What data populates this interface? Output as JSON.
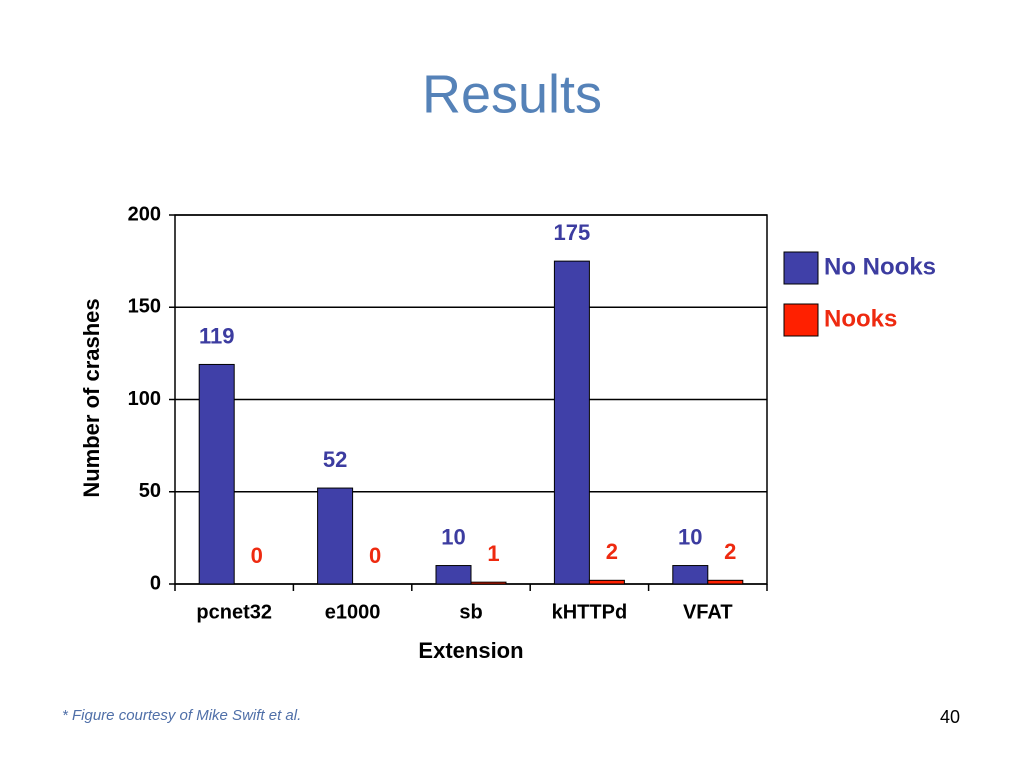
{
  "title": "Results",
  "chart_data": {
    "type": "bar",
    "categories": [
      "pcnet32",
      "e1000",
      "sb",
      "kHTTPd",
      "VFAT"
    ],
    "series": [
      {
        "name": "No Nooks",
        "color": "#4040a8",
        "label_color": "#3c3ca0",
        "values": [
          119,
          52,
          10,
          175,
          10
        ]
      },
      {
        "name": "Nooks",
        "color": "#ff2000",
        "label_color": "#ee2a10",
        "values": [
          0,
          0,
          1,
          2,
          2
        ]
      }
    ],
    "xlabel": "Extension",
    "ylabel": "Number of crashes",
    "ylim": [
      0,
      200
    ],
    "yticks": [
      0,
      50,
      100,
      150,
      200
    ],
    "grid": true,
    "legend": "right"
  },
  "footnote": "* Figure courtesy of Mike Swift et al.",
  "page_number": "40"
}
